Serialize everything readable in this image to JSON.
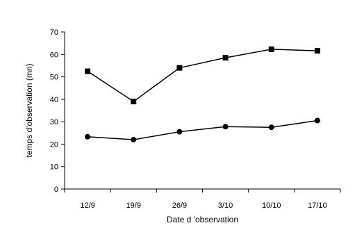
{
  "chart_data": {
    "type": "line",
    "title": "",
    "xlabel": "Date d 'observation",
    "ylabel": "temps d'observation (mn)",
    "categories": [
      "12/9",
      "19/9",
      "26/9",
      "3/10",
      "10/10",
      "17/10"
    ],
    "ylim": [
      0,
      70
    ],
    "yticks": [
      0,
      10,
      20,
      30,
      40,
      50,
      60,
      70
    ],
    "grid": false,
    "legend": "none",
    "series": [
      {
        "values": [
          52.5,
          39,
          54,
          58.5,
          62.3,
          61.6
        ],
        "marker": "square",
        "color": "#000000"
      },
      {
        "values": [
          23.3,
          22,
          25.5,
          27.8,
          27.5,
          30.5
        ],
        "marker": "circle",
        "color": "#000000"
      }
    ]
  }
}
